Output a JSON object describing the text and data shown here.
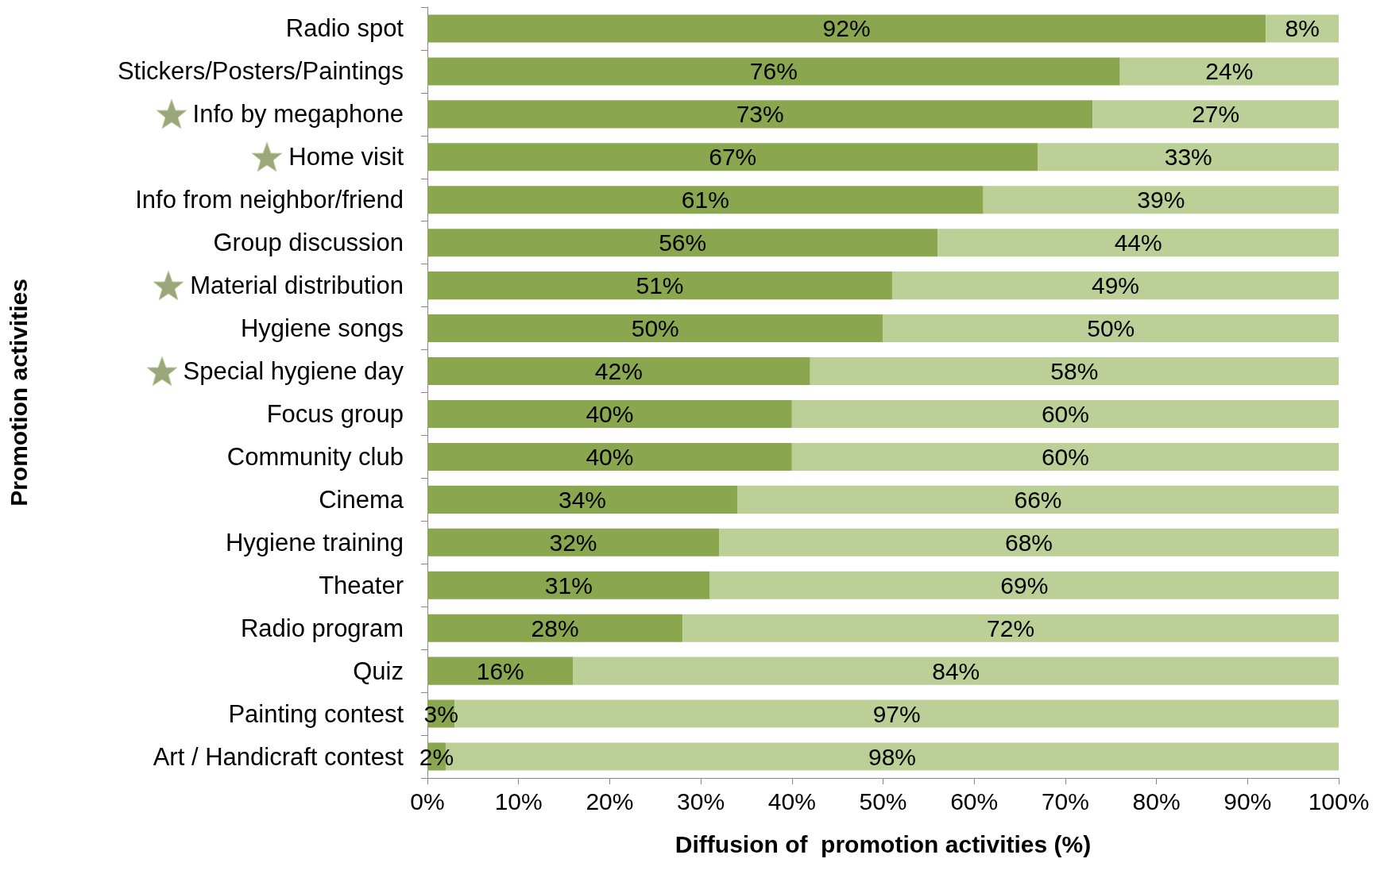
{
  "chart_data": {
    "type": "bar",
    "orientation": "horizontal",
    "stacked": true,
    "grid": false,
    "xlabel": "Diffusion of  promotion activities (%)",
    "ylabel": "Promotion activities",
    "categories": [
      "Radio spot",
      "Stickers/Posters/Paintings",
      "Info by megaphone",
      "Home visit",
      "Info from neighbor/friend",
      "Group discussion",
      "Material distribution",
      "Hygiene songs",
      "Special hygiene day",
      "Focus group",
      "Community club",
      "Cinema",
      "Hygiene training",
      "Theater",
      "Radio program",
      "Quiz",
      "Painting contest",
      "Art / Handicraft contest"
    ],
    "series": [
      {
        "color": "#8aa64e",
        "values": [
          92,
          76,
          73,
          67,
          61,
          56,
          51,
          50,
          42,
          40,
          40,
          34,
          32,
          31,
          28,
          16,
          3,
          2
        ],
        "value_labels": [
          "92%",
          "76%",
          "73%",
          "67%",
          "61%",
          "56%",
          "51%",
          "50%",
          "42%",
          "40%",
          "40%",
          "34%",
          "32%",
          "31%",
          "28%",
          "16%",
          "3%",
          "2%"
        ]
      },
      {
        "color": "#bccf97",
        "values": [
          8,
          24,
          27,
          33,
          39,
          44,
          49,
          50,
          58,
          60,
          60,
          66,
          68,
          69,
          72,
          84,
          97,
          98
        ],
        "value_labels": [
          "8%",
          "24%",
          "27%",
          "33%",
          "39%",
          "44%",
          "49%",
          "50%",
          "58%",
          "60%",
          "60%",
          "66%",
          "68%",
          "69%",
          "72%",
          "84%",
          "97%",
          "98%"
        ]
      }
    ],
    "xlim": [
      0,
      100
    ],
    "xticks": [
      {
        "value": 0,
        "label": "0%"
      },
      {
        "value": 10,
        "label": "10%"
      },
      {
        "value": 20,
        "label": "20%"
      },
      {
        "value": 30,
        "label": "30%"
      },
      {
        "value": 40,
        "label": "40%"
      },
      {
        "value": 50,
        "label": "50%"
      },
      {
        "value": 60,
        "label": "60%"
      },
      {
        "value": 70,
        "label": "70%"
      },
      {
        "value": 80,
        "label": "80%"
      },
      {
        "value": 90,
        "label": "90%"
      },
      {
        "value": 100,
        "label": "100%"
      }
    ]
  }
}
